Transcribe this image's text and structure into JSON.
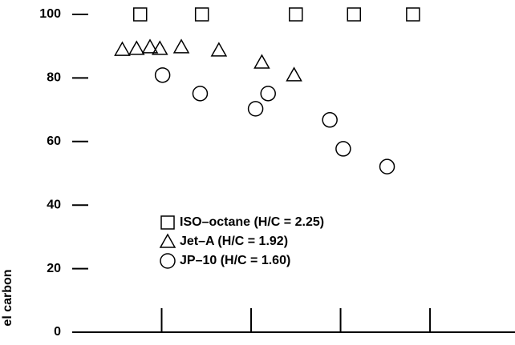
{
  "chart_data": {
    "type": "scatter",
    "ylabel": "el carbon",
    "xlim": [
      0,
      4.95
    ],
    "xticks": [
      1,
      2,
      3,
      4
    ],
    "ylim": [
      0,
      100
    ],
    "yticks": [
      0,
      20,
      40,
      60,
      80,
      100
    ],
    "series": [
      {
        "name": "ISO–octane (H/C = 2.25)",
        "color": "#000000",
        "marker": "square",
        "x": [
          0.76,
          1.45,
          2.5,
          3.15,
          3.81
        ],
        "values": [
          100,
          100,
          100,
          100,
          100
        ]
      },
      {
        "name": "Jet–A (H/C = 1.92)",
        "color": "#000000",
        "marker": "triangle",
        "x": [
          0.56,
          0.72,
          0.87,
          0.98,
          1.22,
          1.64,
          2.12,
          2.48
        ],
        "values": [
          88.9,
          89.2,
          89.7,
          89.2,
          89.7,
          88.7,
          84.9,
          80.9
        ]
      },
      {
        "name": "JP–10 (H/C = 1.60)",
        "color": "#000000",
        "marker": "circle",
        "x": [
          1.01,
          1.43,
          2.05,
          2.19,
          2.88,
          3.03,
          3.52
        ],
        "values": [
          80.9,
          75.1,
          70.3,
          75.1,
          66.8,
          57.7,
          52.1
        ]
      }
    ]
  }
}
